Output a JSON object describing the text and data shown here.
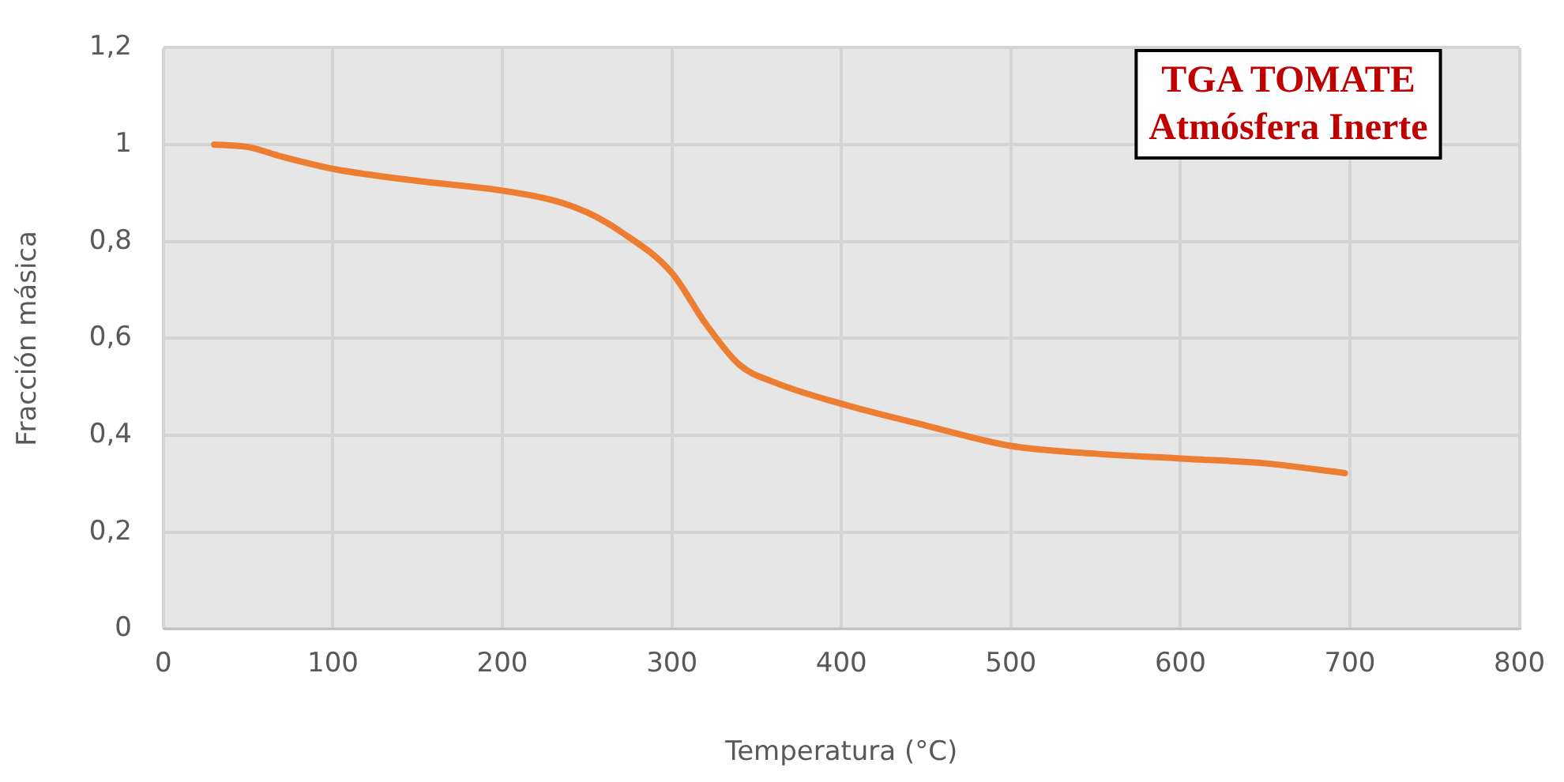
{
  "chart_data": {
    "type": "line",
    "xlabel": "Temperatura (°C)",
    "ylabel": "Fracción másica",
    "annotations": [
      "TGA TOMATE",
      "Atmósfera Inerte"
    ],
    "x": [
      30,
      50,
      70,
      100,
      150,
      200,
      230,
      250,
      270,
      300,
      320,
      340,
      360,
      400,
      450,
      500,
      550,
      600,
      650,
      697
    ],
    "series": [
      {
        "color": "#ed7d31",
        "values": [
          1.0,
          0.995,
          0.975,
          0.95,
          0.925,
          0.905,
          0.885,
          0.86,
          0.82,
          0.735,
          0.63,
          0.545,
          0.51,
          0.465,
          0.42,
          0.378,
          0.362,
          0.352,
          0.342,
          0.322
        ]
      }
    ],
    "xlim": [
      0,
      800
    ],
    "xticks": [
      0,
      100,
      200,
      300,
      400,
      500,
      600,
      700,
      800
    ],
    "ylim": [
      0,
      1.2
    ],
    "yticks": [
      0,
      {
        "value": 0.2,
        "label": "0,2"
      },
      {
        "value": 0.4,
        "label": "0,4"
      },
      {
        "value": 0.6,
        "label": "0,6"
      },
      {
        "value": 0.8,
        "label": "0,8"
      },
      1,
      {
        "value": 1.2,
        "label": "1,2"
      }
    ],
    "grid": true,
    "legend": false,
    "marker": "none",
    "line_style": "solid"
  }
}
